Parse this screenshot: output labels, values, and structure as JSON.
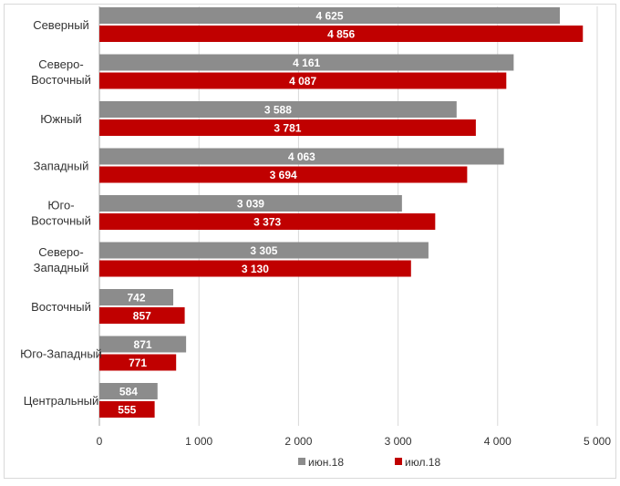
{
  "chart_data": {
    "type": "bar",
    "orientation": "horizontal",
    "categories": [
      "Северный",
      "Северо-Восточный",
      "Южный",
      "Западный",
      "Юго-Восточный",
      "Северо-Западный",
      "Восточный",
      "Юго-Западный",
      "Центральный"
    ],
    "category_lines": [
      [
        "Северный"
      ],
      [
        "Северо-",
        "Восточный"
      ],
      [
        "Южный"
      ],
      [
        "Западный"
      ],
      [
        "Юго-",
        "Восточный"
      ],
      [
        "Северо-",
        "Западный"
      ],
      [
        "Восточный"
      ],
      [
        "Юго-Западный"
      ],
      [
        "Центральный"
      ]
    ],
    "series": [
      {
        "name": "июн.18",
        "color": "#8c8c8c",
        "values": [
          4625,
          4161,
          3588,
          4063,
          3039,
          3305,
          742,
          871,
          584
        ],
        "value_labels": [
          "4 625",
          "4 161",
          "3 588",
          "4 063",
          "3 039",
          "3 305",
          "742",
          "871",
          "584"
        ]
      },
      {
        "name": "июл.18",
        "color": "#c00000",
        "values": [
          4856,
          4087,
          3781,
          3694,
          3373,
          3130,
          857,
          771,
          555
        ],
        "value_labels": [
          "4 856",
          "4 087",
          "3 781",
          "3 694",
          "3 373",
          "3 130",
          "857",
          "771",
          "555"
        ]
      }
    ],
    "xlim": [
      0,
      5000
    ],
    "xticks": [
      0,
      1000,
      2000,
      3000,
      4000,
      5000
    ],
    "xtick_labels": [
      "0",
      "1 000",
      "2 000",
      "3 000",
      "4 000",
      "5 000"
    ],
    "grid": true,
    "gridline_color": "#d9d9d9",
    "legend_position": "bottom"
  }
}
